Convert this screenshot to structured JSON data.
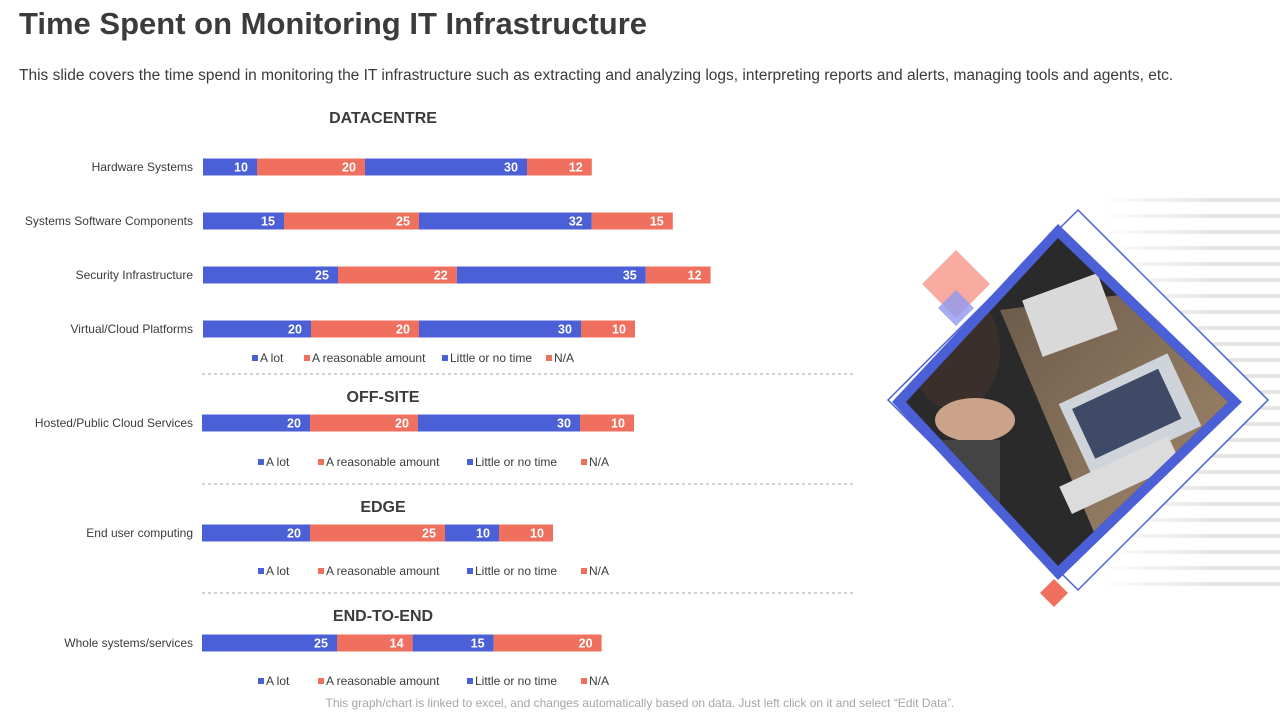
{
  "header": {
    "title": "Time Spent on Monitoring IT Infrastructure",
    "subtitle": "This slide covers the time spend in monitoring the IT infrastructure  such as extracting and analyzing  logs, interpreting reports and alerts, managing tools and agents, etc."
  },
  "footer": "This graph/chart is linked to excel, and changes automatically based on data. Just left click on it and select “Edit Data”.",
  "colors": {
    "blue": "#4B5FD6",
    "coral": "#F0705F",
    "text": "#3b3b3b"
  },
  "image": {
    "alt_icon": "person-laptop-photo"
  },
  "chart_data": [
    {
      "type": "bar",
      "orientation": "horizontal",
      "stacked": true,
      "title": "DATACENTRE",
      "categories": [
        "Hardware Systems",
        "Systems Software Components",
        "Security Infrastructure",
        "Virtual/Cloud Platforms"
      ],
      "series": [
        {
          "name": "A lot",
          "color": "#4B5FD6",
          "values": [
            10,
            15,
            25,
            20
          ]
        },
        {
          "name": "A reasonable amount",
          "color": "#F0705F",
          "values": [
            20,
            25,
            22,
            20
          ]
        },
        {
          "name": "Little or no time",
          "color": "#4B5FD6",
          "values": [
            30,
            32,
            35,
            30
          ]
        },
        {
          "name": "N/A",
          "color": "#F0705F",
          "values": [
            12,
            15,
            12,
            10
          ]
        }
      ],
      "legend": "bottom"
    },
    {
      "type": "bar",
      "orientation": "horizontal",
      "stacked": true,
      "title": "OFF-SITE",
      "categories": [
        "Hosted/Public Cloud Services"
      ],
      "series": [
        {
          "name": "A lot",
          "color": "#4B5FD6",
          "values": [
            20
          ]
        },
        {
          "name": "A reasonable amount",
          "color": "#F0705F",
          "values": [
            20
          ]
        },
        {
          "name": "Little or no time",
          "color": "#4B5FD6",
          "values": [
            30
          ]
        },
        {
          "name": "N/A",
          "color": "#F0705F",
          "values": [
            10
          ]
        }
      ],
      "legend": "bottom"
    },
    {
      "type": "bar",
      "orientation": "horizontal",
      "stacked": true,
      "title": "EDGE",
      "categories": [
        "End user computing"
      ],
      "series": [
        {
          "name": "A lot",
          "color": "#4B5FD6",
          "values": [
            20
          ]
        },
        {
          "name": "A reasonable amount",
          "color": "#F0705F",
          "values": [
            25
          ]
        },
        {
          "name": "Little or no time",
          "color": "#4B5FD6",
          "values": [
            10
          ]
        },
        {
          "name": "N/A",
          "color": "#F0705F",
          "values": [
            10
          ]
        }
      ],
      "legend": "bottom"
    },
    {
      "type": "bar",
      "orientation": "horizontal",
      "stacked": true,
      "title": "END-TO-END",
      "categories": [
        "Whole systems/services"
      ],
      "series": [
        {
          "name": "A lot",
          "color": "#4B5FD6",
          "values": [
            25
          ]
        },
        {
          "name": "A reasonable amount",
          "color": "#F0705F",
          "values": [
            14
          ]
        },
        {
          "name": "Little or no time",
          "color": "#4B5FD6",
          "values": [
            15
          ]
        },
        {
          "name": "N/A",
          "color": "#F0705F",
          "values": [
            20
          ]
        }
      ],
      "legend": "bottom"
    }
  ]
}
